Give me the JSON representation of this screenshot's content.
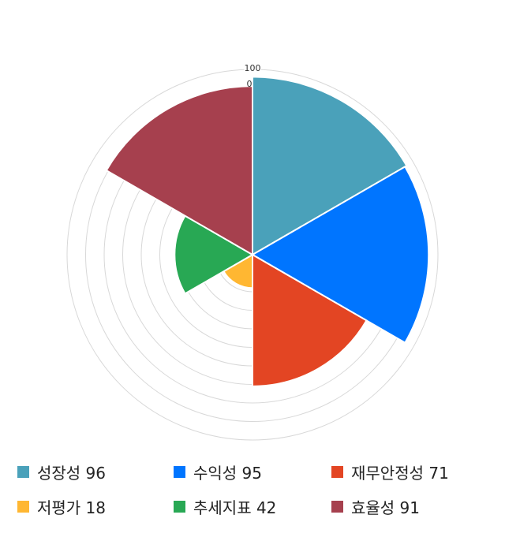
{
  "chart_data": {
    "type": "polar-area",
    "categories": [
      "성장성",
      "수익성",
      "재무안정성",
      "저평가",
      "추세지표",
      "효율성"
    ],
    "values": [
      96,
      95,
      71,
      18,
      42,
      91
    ],
    "colors": [
      "#4AA1BA",
      "#0075FF",
      "#E34523",
      "#FFB732",
      "#28A854",
      "#A6404E"
    ],
    "rlim": [
      0,
      100
    ],
    "tick_labels": [
      "100",
      "0"
    ],
    "legend_placement": "bottom",
    "legend_labels": [
      "성장성 96",
      "수익성 95",
      "재무안정성 71",
      "저평가 18",
      "추세지표 42",
      "효율성 91"
    ]
  }
}
